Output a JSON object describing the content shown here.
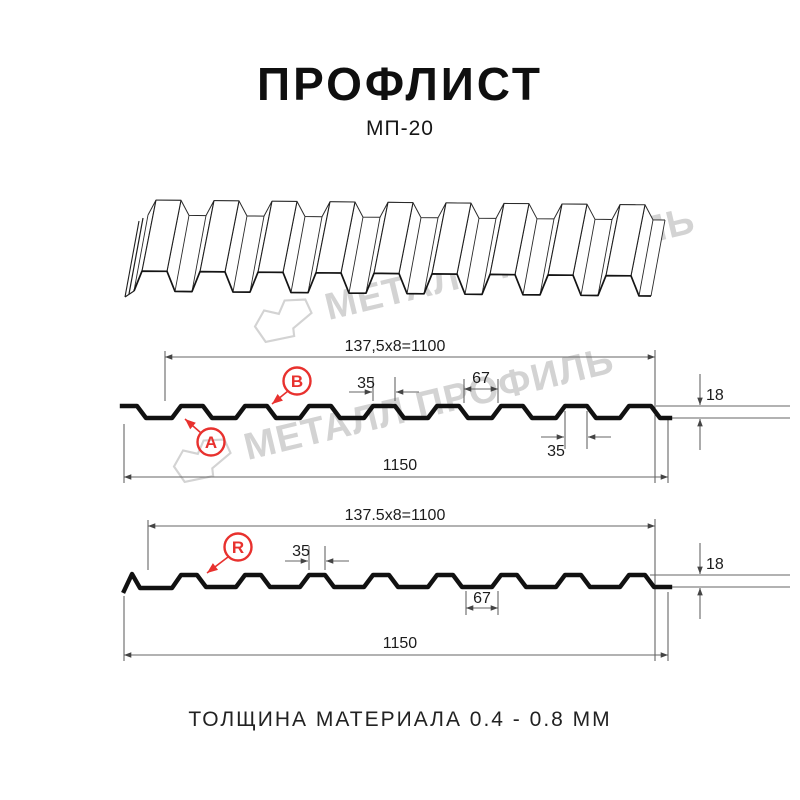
{
  "header": {
    "title": "ПРОФЛИСТ",
    "subtitle": "МП-20"
  },
  "watermark": {
    "text": "МЕТАЛЛ ПРОФИЛЬ"
  },
  "diagram1": {
    "dim_top": "137,5x8=1100",
    "dim_crest": "35",
    "dim_gap": "67",
    "dim_bottom": "35",
    "dim_height": "18",
    "dim_width": "1150",
    "label_a": "A",
    "label_b": "B"
  },
  "diagram2": {
    "dim_top": "137.5x8=1100",
    "dim_crest": "35",
    "dim_gap": "67",
    "dim_height": "18",
    "dim_width": "1150",
    "label_r": "R"
  },
  "footer": {
    "text": "ТОЛЩИНА МАТЕРИАЛА 0.4 - 0.8 ММ"
  },
  "colors": {
    "accent": "#e8312e",
    "line": "#111111",
    "thin_line": "#666666",
    "watermark": "#d3d3d3"
  }
}
